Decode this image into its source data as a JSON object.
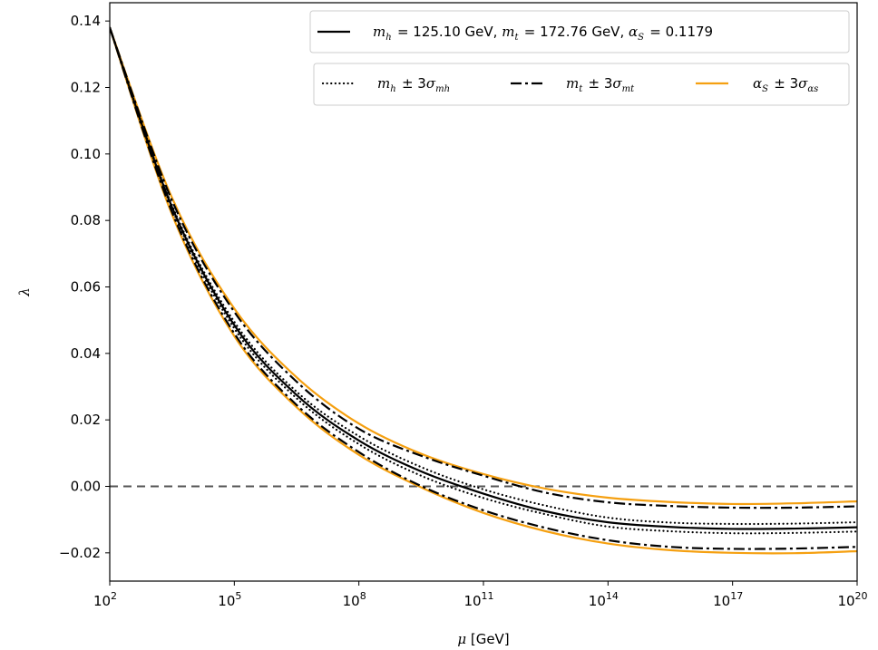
{
  "chart_data": {
    "type": "line",
    "xlabel_parts": {
      "mu": "μ",
      "unit": " [GeV]"
    },
    "ylabel": "λ",
    "x_scale": "log10",
    "xlim_exponent": [
      2,
      20
    ],
    "ylim": [
      -0.0285,
      0.1455
    ],
    "x_ticks": [
      {
        "base": "10",
        "exp": "2"
      },
      {
        "base": "10",
        "exp": "5"
      },
      {
        "base": "10",
        "exp": "8"
      },
      {
        "base": "10",
        "exp": "11"
      },
      {
        "base": "10",
        "exp": "14"
      },
      {
        "base": "10",
        "exp": "17"
      },
      {
        "base": "10",
        "exp": "20"
      }
    ],
    "y_ticks": [
      "−0.02",
      "0.00",
      "0.02",
      "0.04",
      "0.06",
      "0.08",
      "0.10",
      "0.12",
      "0.14"
    ],
    "y_tick_values": [
      -0.02,
      0.0,
      0.02,
      0.04,
      0.06,
      0.08,
      0.1,
      0.12,
      0.14
    ],
    "reference_line": {
      "y": 0.0,
      "style": "dashed",
      "color": "#555555"
    },
    "x_exponents": [
      2,
      3.5,
      5,
      6.5,
      8,
      9.5,
      11,
      12.5,
      14,
      15.5,
      17,
      18.5,
      20
    ],
    "series": [
      {
        "id": "central",
        "style": "solid",
        "color": "#000000",
        "width": 2.2,
        "values": [
          0.138,
          0.084,
          0.0485,
          0.0275,
          0.0138,
          0.0045,
          -0.0022,
          -0.0075,
          -0.0108,
          -0.0122,
          -0.0128,
          -0.0127,
          -0.0123
        ]
      },
      {
        "id": "mh_plus",
        "style": "dotted",
        "color": "#000000",
        "width": 2.2,
        "values": [
          0.138,
          0.0845,
          0.0495,
          0.0285,
          0.0151,
          0.0058,
          -0.0009,
          -0.0058,
          -0.0094,
          -0.0109,
          -0.0113,
          -0.0112,
          -0.0108
        ]
      },
      {
        "id": "mh_minus",
        "style": "dotted",
        "color": "#000000",
        "width": 2.2,
        "values": [
          0.138,
          0.0835,
          0.0475,
          0.0265,
          0.0127,
          0.0032,
          -0.0035,
          -0.0084,
          -0.0121,
          -0.0135,
          -0.0141,
          -0.014,
          -0.0136
        ]
      },
      {
        "id": "mt_plus",
        "style": "dashdot",
        "color": "#000000",
        "width": 2.2,
        "values": [
          0.138,
          0.0825,
          0.046,
          0.0245,
          0.0103,
          0.0001,
          -0.0072,
          -0.0125,
          -0.0162,
          -0.0182,
          -0.0188,
          -0.0187,
          -0.0182
        ]
      },
      {
        "id": "mt_minus",
        "style": "dashdot",
        "color": "#000000",
        "width": 2.2,
        "values": [
          0.138,
          0.086,
          0.0525,
          0.0315,
          0.0173,
          0.0092,
          0.0032,
          -0.0019,
          -0.0048,
          -0.0059,
          -0.0064,
          -0.0064,
          -0.006
        ]
      },
      {
        "id": "as_plus",
        "style": "solid",
        "color": "#f5a011",
        "width": 2.2,
        "values": [
          0.138,
          0.0868,
          0.0535,
          0.0328,
          0.0189,
          0.0098,
          0.0037,
          -0.0007,
          -0.0034,
          -0.0047,
          -0.0053,
          -0.0051,
          -0.0045
        ]
      },
      {
        "id": "as_minus",
        "style": "solid",
        "color": "#f5a011",
        "width": 2.2,
        "values": [
          0.138,
          0.0818,
          0.0452,
          0.0238,
          0.0095,
          -0.0003,
          -0.008,
          -0.0135,
          -0.0172,
          -0.0192,
          -0.02,
          -0.0201,
          -0.0195
        ]
      }
    ],
    "legend_top": {
      "placement": "top-right",
      "entries": [
        {
          "symbol_style": "solid",
          "symbol_color": "#000000",
          "parts": [
            {
              "math": "m",
              "sub": "h"
            },
            {
              "text": " = 125.10 GeV, "
            },
            {
              "math": "m",
              "sub": "t"
            },
            {
              "text": " = 172.76 GeV, "
            },
            {
              "math": "α",
              "sub": "S"
            },
            {
              "text": " = 0.1179"
            }
          ]
        }
      ]
    },
    "legend_bottom": {
      "placement": "top-right",
      "entries": [
        {
          "symbol_style": "dotted",
          "symbol_color": "#000000",
          "parts": [
            {
              "math": "m",
              "sub": "h"
            },
            {
              "text": " ± 3"
            },
            {
              "math": "σ",
              "sub": "mh"
            }
          ]
        },
        {
          "symbol_style": "dashdot",
          "symbol_color": "#000000",
          "parts": [
            {
              "math": "m",
              "sub": "t"
            },
            {
              "text": " ± 3"
            },
            {
              "math": "σ",
              "sub": "mt"
            }
          ]
        },
        {
          "symbol_style": "solid",
          "symbol_color": "#f5a011",
          "parts": [
            {
              "math": "α",
              "sub": "S"
            },
            {
              "text": " ± 3"
            },
            {
              "math": "σ",
              "sub": "αs"
            }
          ]
        }
      ]
    }
  }
}
